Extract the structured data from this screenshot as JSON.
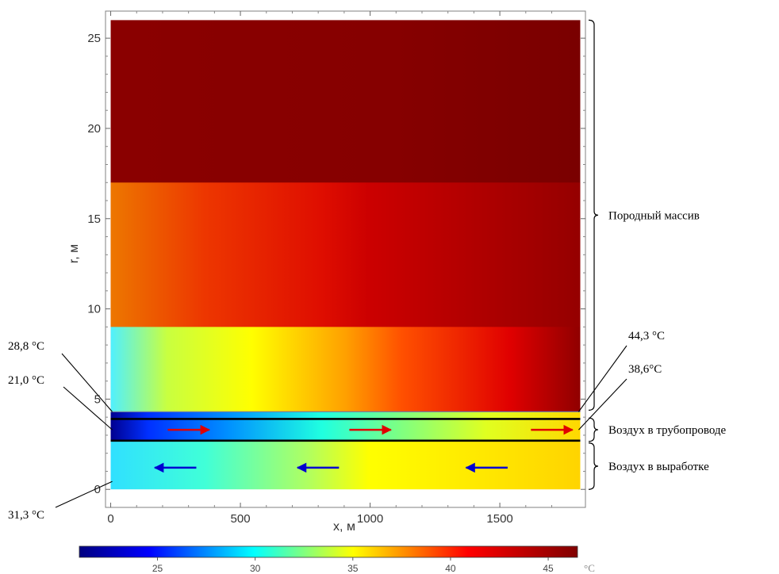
{
  "chart_data": {
    "type": "heatmap",
    "title": "",
    "xlabel": "x, м",
    "ylabel": "r, м",
    "xlim": [
      -20,
      1830
    ],
    "ylim": [
      -1,
      26.5
    ],
    "x_ticks": [
      0,
      500,
      1000,
      1500
    ],
    "x_tick_labels": [
      "0",
      "500",
      "1000",
      "1500"
    ],
    "y_ticks": [
      0,
      5,
      10,
      15,
      20,
      25
    ],
    "y_tick_labels": [
      "0",
      "5",
      "10",
      "15",
      "20",
      "25"
    ],
    "grid": false,
    "regions": [
      {
        "name": "Породный массив",
        "r_range": [
          4.3,
          26
        ]
      },
      {
        "name": "Воздух в трубопроводе",
        "r_range": [
          2.7,
          3.9
        ]
      },
      {
        "name": "Воздух в выработке",
        "r_range": [
          0,
          2.7
        ]
      }
    ],
    "colorbar": {
      "min": 21,
      "max": 46.5,
      "ticks": [
        25,
        30,
        35,
        40,
        45
      ],
      "tick_labels": [
        "25",
        "30",
        "35",
        "40",
        "45"
      ],
      "unit": "°C",
      "colormap": [
        "#000080",
        "#0000ff",
        "#00ffff",
        "#ffff00",
        "#ff0000",
        "#800000"
      ]
    },
    "annotations": [
      {
        "text": "28,8 °C",
        "x": 0,
        "r": 4.3
      },
      {
        "text": "21,0 °C",
        "x": 0,
        "r": 3.3
      },
      {
        "text": "31,3 °C",
        "x": 0,
        "r": 0
      },
      {
        "text": "44,3 °C",
        "x": 1810,
        "r": 4.3
      },
      {
        "text": "38,6°C",
        "x": 1810,
        "r": 3.3
      }
    ],
    "flow_arrows": [
      {
        "region": "Воздух в трубопроводе",
        "direction": "right",
        "color": "#e00000",
        "x": [
          300,
          1000,
          1700
        ]
      },
      {
        "region": "Воздух в выработке",
        "direction": "left",
        "color": "#0000d0",
        "x": [
          250,
          800,
          1450
        ]
      }
    ]
  }
}
